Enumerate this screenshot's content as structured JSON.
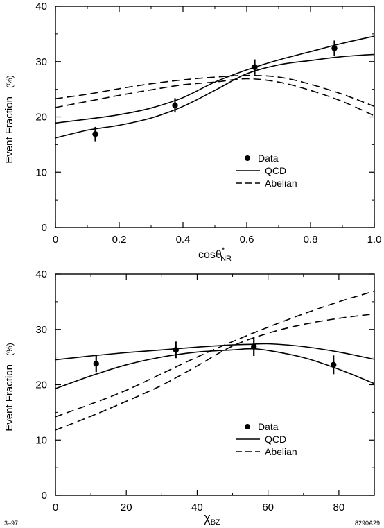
{
  "chart_data": [
    {
      "type": "line",
      "xlabel": "cosθ*NR",
      "xlabel_parts": [
        "cosθ",
        "*",
        "NR"
      ],
      "ylabel": "Event Fraction",
      "ylabel_unit": "(%)",
      "xlim": [
        0,
        1.0
      ],
      "ylim": [
        0,
        40
      ],
      "xticks": [
        "0",
        "0.2",
        "0.4",
        "0.6",
        "0.8",
        "1.0"
      ],
      "xtick_values": [
        0,
        0.2,
        0.4,
        0.6,
        0.8,
        1.0
      ],
      "yticks": [
        "0",
        "10",
        "20",
        "30",
        "40"
      ],
      "ytick_values": [
        0,
        10,
        20,
        30,
        40
      ],
      "grid": false,
      "legend_position": "lower-right",
      "legend": [
        "Data",
        "QCD",
        "Abelian"
      ],
      "data": {
        "name": "Data",
        "x": [
          0.125,
          0.375,
          0.625,
          0.875
        ],
        "y": [
          16.9,
          22.1,
          29.0,
          32.4
        ],
        "err": [
          1.3,
          1.3,
          1.4,
          1.4
        ]
      },
      "curves": [
        {
          "group": "QCD",
          "style": "solid",
          "x": [
            0,
            0.1,
            0.2,
            0.3,
            0.4,
            0.5,
            0.6,
            0.7,
            0.8,
            0.9,
            1.0
          ],
          "y": [
            16.2,
            17.6,
            18.5,
            19.8,
            21.9,
            24.8,
            27.8,
            29.4,
            30.2,
            30.9,
            31.3
          ]
        },
        {
          "group": "QCD",
          "style": "solid",
          "x": [
            0,
            0.1,
            0.2,
            0.3,
            0.4,
            0.5,
            0.6,
            0.7,
            0.8,
            0.9,
            1.0
          ],
          "y": [
            18.9,
            19.6,
            20.4,
            21.6,
            23.5,
            26.3,
            28.5,
            30.3,
            31.8,
            33.3,
            34.6
          ]
        },
        {
          "group": "Abelian",
          "style": "dashed",
          "x": [
            0,
            0.1,
            0.2,
            0.3,
            0.4,
            0.5,
            0.6,
            0.7,
            0.8,
            0.9,
            1.0
          ],
          "y": [
            21.7,
            22.8,
            23.9,
            24.9,
            25.8,
            26.3,
            26.9,
            26.3,
            24.8,
            22.8,
            20.2
          ]
        },
        {
          "group": "Abelian",
          "style": "dashed",
          "x": [
            0,
            0.1,
            0.2,
            0.3,
            0.4,
            0.5,
            0.6,
            0.7,
            0.8,
            0.9,
            1.0
          ],
          "y": [
            23.3,
            24.1,
            25.1,
            26.0,
            26.7,
            27.2,
            27.5,
            27.2,
            25.9,
            24.1,
            21.9
          ]
        }
      ]
    },
    {
      "type": "line",
      "xlabel": "χBZ",
      "xlabel_parts": [
        "χ",
        "",
        "BZ"
      ],
      "ylabel": "Event Fraction",
      "ylabel_unit": "(%)",
      "xlim": [
        0,
        90
      ],
      "ylim": [
        0,
        40
      ],
      "xticks": [
        "0",
        "20",
        "40",
        "60",
        "80"
      ],
      "xtick_values": [
        0,
        20,
        40,
        60,
        80
      ],
      "yticks": [
        "0",
        "10",
        "20",
        "30",
        "40"
      ],
      "ytick_values": [
        0,
        10,
        20,
        30,
        40
      ],
      "grid": false,
      "legend_position": "lower-right",
      "legend": [
        "Data",
        "QCD",
        "Abelian"
      ],
      "data": {
        "name": "Data",
        "x": [
          11.5,
          34,
          56,
          78.5
        ],
        "y": [
          23.8,
          26.3,
          26.9,
          23.6
        ],
        "err": [
          1.5,
          1.5,
          1.7,
          1.7
        ]
      },
      "curves": [
        {
          "group": "QCD",
          "style": "solid",
          "x": [
            0,
            10,
            20,
            30,
            40,
            50,
            55,
            60,
            70,
            80,
            90
          ],
          "y": [
            24.5,
            25.2,
            25.8,
            26.3,
            26.8,
            27.2,
            27.3,
            27.4,
            26.9,
            25.9,
            24.6
          ]
        },
        {
          "group": "QCD",
          "style": "solid",
          "x": [
            0,
            10,
            20,
            30,
            40,
            50,
            55,
            60,
            70,
            80,
            90
          ],
          "y": [
            19.3,
            21.6,
            23.6,
            25.0,
            25.9,
            26.3,
            26.5,
            26.2,
            24.9,
            22.8,
            20.2
          ]
        },
        {
          "group": "Abelian",
          "style": "dashed",
          "x": [
            0,
            10,
            20,
            30,
            40,
            50,
            60,
            70,
            80,
            90
          ],
          "y": [
            14.2,
            16.5,
            19.0,
            22.0,
            25.0,
            27.8,
            30.4,
            32.8,
            35.0,
            36.9
          ]
        },
        {
          "group": "Abelian",
          "style": "dashed",
          "x": [
            0,
            10,
            20,
            30,
            40,
            50,
            60,
            70,
            80,
            90
          ],
          "y": [
            11.8,
            14.3,
            17.0,
            19.9,
            23.4,
            27.0,
            29.3,
            30.9,
            32.0,
            32.8
          ]
        }
      ]
    }
  ],
  "footer": {
    "left": "3–97",
    "right": "8290A29"
  }
}
